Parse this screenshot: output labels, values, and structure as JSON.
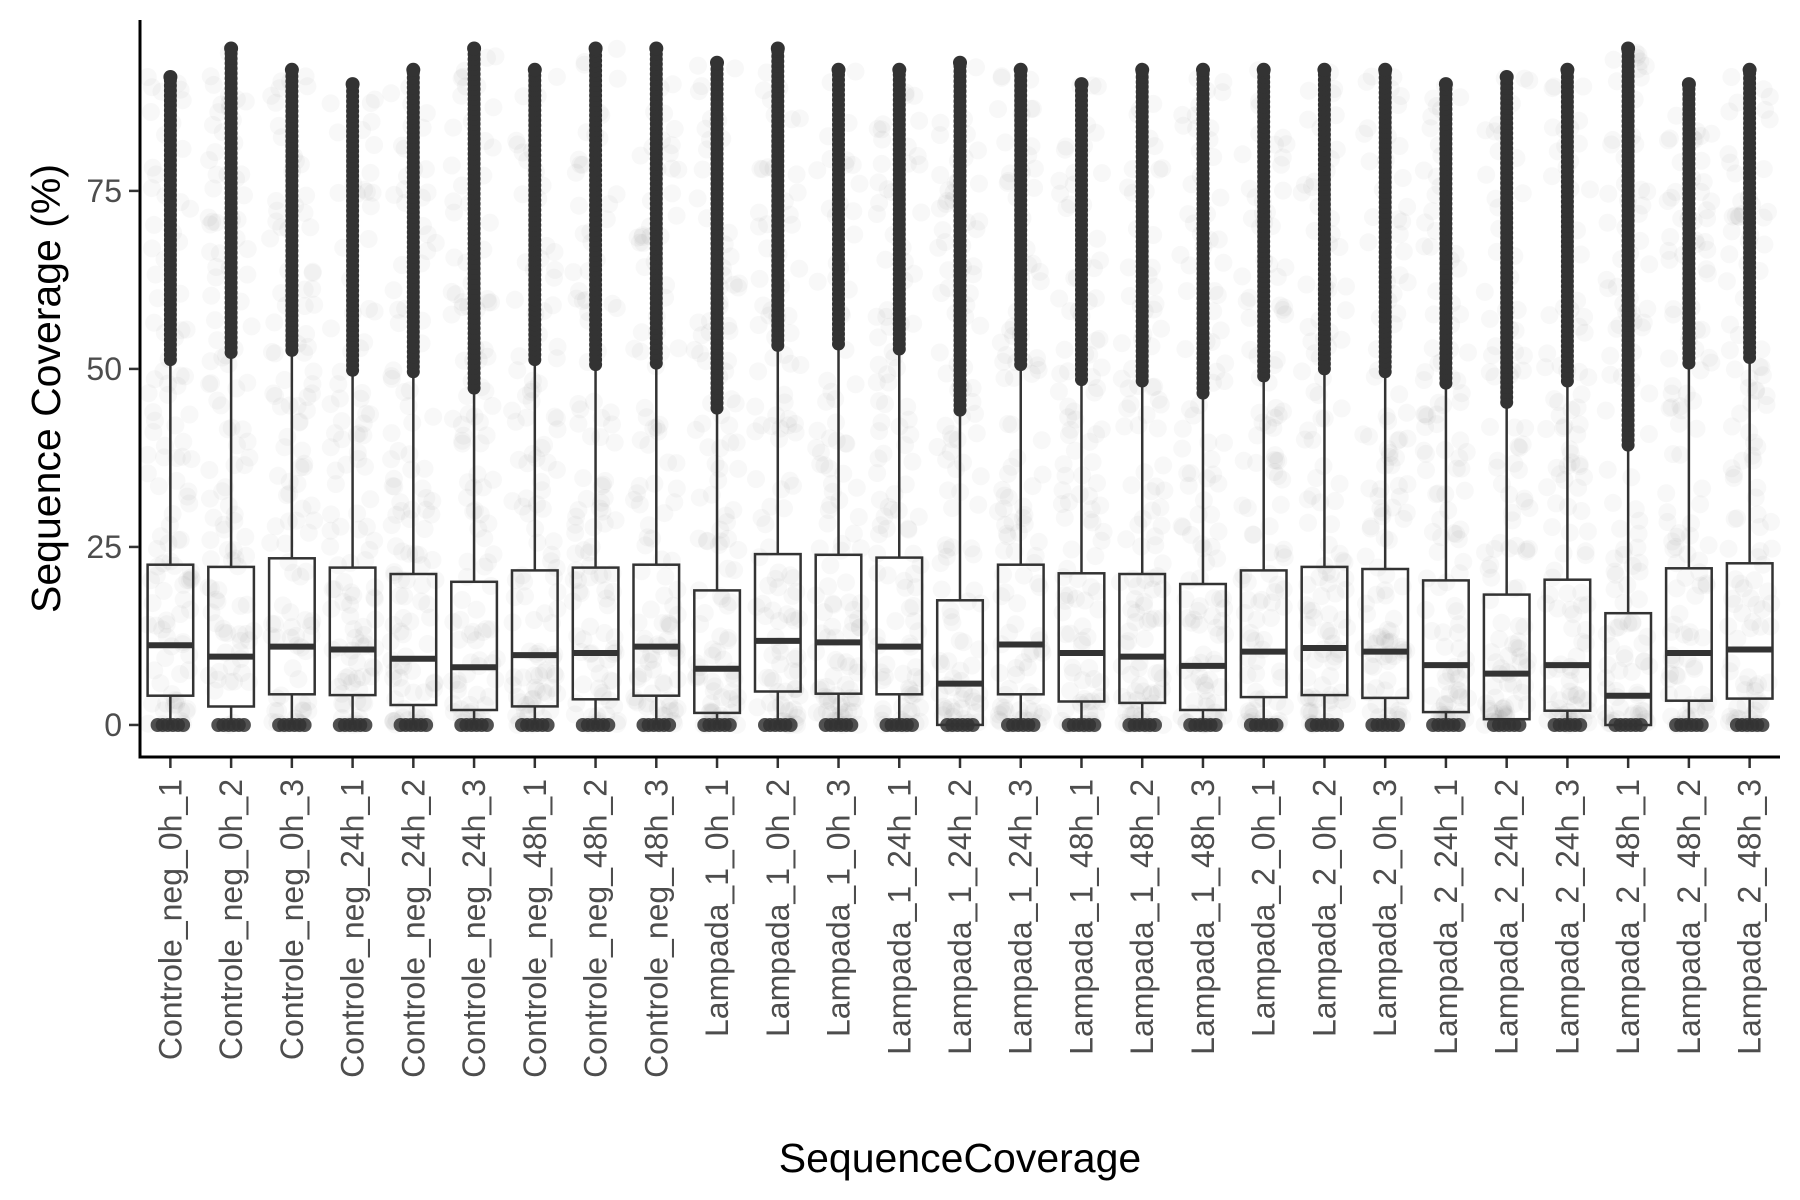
{
  "chart_data": {
    "type": "box",
    "title": "",
    "xlabel": "SequenceCoverage",
    "ylabel": "Sequence Coverage (%)",
    "ylim": [
      -4.5,
      99
    ],
    "yticks": [
      0,
      25,
      50,
      75
    ],
    "grid": false,
    "legend": "none",
    "colors": {
      "box_stroke": "#333333",
      "points": "#333333",
      "axis": "#000000",
      "tick_text": "#4d4d4d"
    },
    "categories": [
      "Controle_neg_0h_1",
      "Controle_neg_0h_2",
      "Controle_neg_0h_3",
      "Controle_neg_24h_1",
      "Controle_neg_24h_2",
      "Controle_neg_24h_3",
      "Controle_neg_48h_1",
      "Controle_neg_48h_2",
      "Controle_neg_48h_3",
      "Lampada_1_0h_1",
      "Lampada_1_0h_2",
      "Lampada_1_0h_3",
      "Lampada_1_24h_1",
      "Lampada_1_24h_2",
      "Lampada_1_24h_3",
      "Lampada_1_48h_1",
      "Lampada_1_48h_2",
      "Lampada_1_48h_3",
      "Lampada_2_0h_1",
      "Lampada_2_0h_2",
      "Lampada_2_0h_3",
      "Lampada_2_24h_1",
      "Lampada_2_24h_2",
      "Lampada_2_24h_3",
      "Lampada_2_48h_1",
      "Lampada_2_48h_2",
      "Lampada_2_48h_3"
    ],
    "boxes": [
      {
        "q1": 4.1,
        "median": 11.2,
        "q3": 22.5,
        "whisker_low": 0,
        "whisker_high": 50.5,
        "max": 91
      },
      {
        "q1": 2.6,
        "median": 9.6,
        "q3": 22.2,
        "whisker_low": 0,
        "whisker_high": 51.5,
        "max": 95
      },
      {
        "q1": 4.3,
        "median": 11.0,
        "q3": 23.4,
        "whisker_low": 0,
        "whisker_high": 51.8,
        "max": 92
      },
      {
        "q1": 4.2,
        "median": 10.6,
        "q3": 22.1,
        "whisker_low": 0,
        "whisker_high": 49.0,
        "max": 90
      },
      {
        "q1": 2.8,
        "median": 9.3,
        "q3": 21.2,
        "whisker_low": 0,
        "whisker_high": 48.8,
        "max": 92
      },
      {
        "q1": 2.1,
        "median": 8.1,
        "q3": 20.1,
        "whisker_low": 0,
        "whisker_high": 46.5,
        "max": 95
      },
      {
        "q1": 2.6,
        "median": 9.8,
        "q3": 21.7,
        "whisker_low": 0,
        "whisker_high": 50.5,
        "max": 92
      },
      {
        "q1": 3.6,
        "median": 10.1,
        "q3": 22.1,
        "whisker_low": 0,
        "whisker_high": 49.8,
        "max": 95
      },
      {
        "q1": 4.1,
        "median": 11.0,
        "q3": 22.5,
        "whisker_low": 0,
        "whisker_high": 50.0,
        "max": 95
      },
      {
        "q1": 1.7,
        "median": 7.9,
        "q3": 18.9,
        "whisker_low": 0,
        "whisker_high": 43.7,
        "max": 93
      },
      {
        "q1": 4.7,
        "median": 11.8,
        "q3": 24.0,
        "whisker_low": 0,
        "whisker_high": 52.5,
        "max": 95
      },
      {
        "q1": 4.4,
        "median": 11.6,
        "q3": 23.9,
        "whisker_low": 0,
        "whisker_high": 52.7,
        "max": 92
      },
      {
        "q1": 4.3,
        "median": 11.0,
        "q3": 23.5,
        "whisker_low": 0,
        "whisker_high": 52.0,
        "max": 92
      },
      {
        "q1": 0.0,
        "median": 5.8,
        "q3": 17.5,
        "whisker_low": 0,
        "whisker_high": 43.4,
        "max": 93
      },
      {
        "q1": 4.3,
        "median": 11.3,
        "q3": 22.5,
        "whisker_low": 0,
        "whisker_high": 49.8,
        "max": 92
      },
      {
        "q1": 3.3,
        "median": 10.1,
        "q3": 21.3,
        "whisker_low": 0,
        "whisker_high": 47.7,
        "max": 90
      },
      {
        "q1": 3.1,
        "median": 9.6,
        "q3": 21.2,
        "whisker_low": 0,
        "whisker_high": 47.5,
        "max": 92
      },
      {
        "q1": 2.1,
        "median": 8.3,
        "q3": 19.8,
        "whisker_low": 0,
        "whisker_high": 45.8,
        "max": 92
      },
      {
        "q1": 3.9,
        "median": 10.3,
        "q3": 21.7,
        "whisker_low": 0,
        "whisker_high": 48.2,
        "max": 92
      },
      {
        "q1": 4.2,
        "median": 10.8,
        "q3": 22.2,
        "whisker_low": 0,
        "whisker_high": 49.2,
        "max": 92
      },
      {
        "q1": 3.8,
        "median": 10.3,
        "q3": 21.9,
        "whisker_low": 0,
        "whisker_high": 48.8,
        "max": 92
      },
      {
        "q1": 1.8,
        "median": 8.4,
        "q3": 20.3,
        "whisker_low": 0,
        "whisker_high": 47.2,
        "max": 90
      },
      {
        "q1": 0.8,
        "median": 7.2,
        "q3": 18.3,
        "whisker_low": 0,
        "whisker_high": 44.5,
        "max": 91
      },
      {
        "q1": 2.0,
        "median": 8.4,
        "q3": 20.4,
        "whisker_low": 0,
        "whisker_high": 47.5,
        "max": 92
      },
      {
        "q1": 0.0,
        "median": 4.1,
        "q3": 15.7,
        "whisker_low": 0,
        "whisker_high": 38.5,
        "max": 95
      },
      {
        "q1": 3.4,
        "median": 10.1,
        "q3": 22.0,
        "whisker_low": 0,
        "whisker_high": 50.0,
        "max": 90
      },
      {
        "q1": 3.7,
        "median": 10.6,
        "q3": 22.7,
        "whisker_low": 0,
        "whisker_high": 50.8,
        "max": 92
      }
    ]
  }
}
